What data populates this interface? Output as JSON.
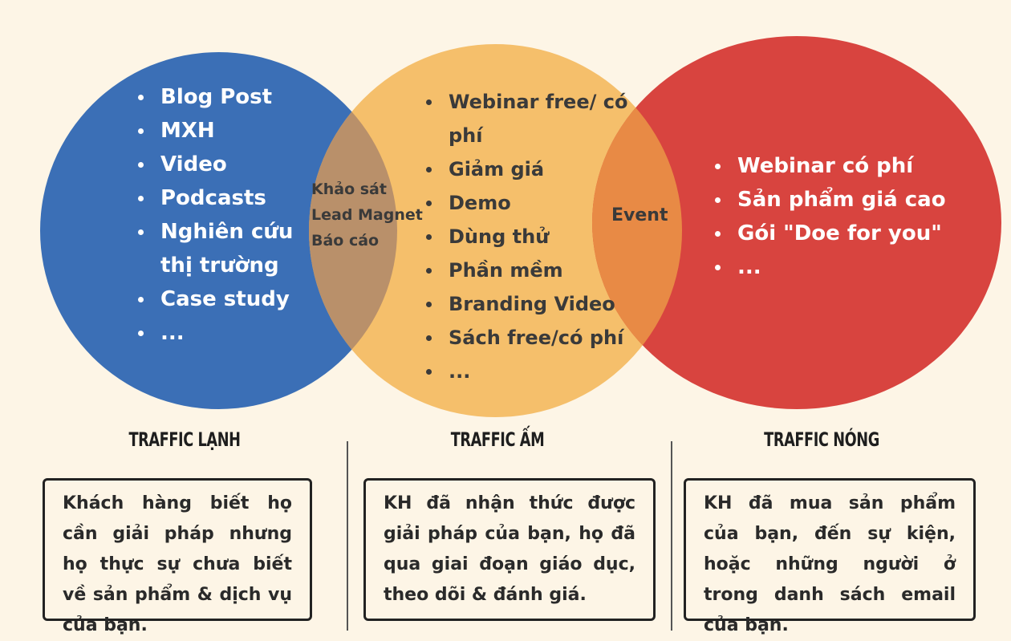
{
  "colors": {
    "background": "#fdf5e6",
    "cold": "#3b6fb6",
    "warm": "#f5bf6b",
    "hot": "#d8443f",
    "overlap_cold_warm": "#b9906a",
    "overlap_warm_hot": "#e88a45"
  },
  "cold": {
    "items": [
      "Blog Post",
      "MXH",
      "Video",
      "Podcasts",
      "Nghiên cứu thị trường",
      "Case study",
      "..."
    ],
    "heading": "TRAFFIC LẠNH",
    "description": "Khách hàng biết họ cần giải pháp nhưng họ thực sự chưa biết về sản phẩm & dịch vụ của bạn."
  },
  "overlap_cold_warm": [
    "Khảo sát",
    "Lead Magnet",
    "Báo cáo"
  ],
  "warm": {
    "items": [
      "Webinar free/ có phí",
      "Giảm giá",
      "Demo",
      "Dùng thử",
      "Phần mềm",
      "Branding Video",
      "Sách free/có phí",
      "..."
    ],
    "heading": "TRAFFIC ẤM",
    "description": "KH đã nhận thức được giải pháp của bạn, họ đã qua giai đoạn giáo dục, theo dõi & đánh giá."
  },
  "overlap_warm_hot": "Event",
  "hot": {
    "items": [
      "Webinar có phí",
      "Sản phẩm giá cao",
      "Gói \"Doe for you\"",
      "..."
    ],
    "heading": "TRAFFIC NÓNG",
    "description": "KH đã mua sản phẩm của bạn, đến sự kiện, hoặc những người ở trong danh sách email của bạn."
  }
}
